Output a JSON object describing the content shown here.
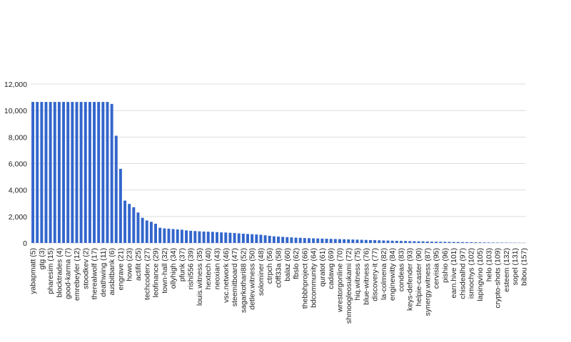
{
  "chart_data": {
    "type": "bar",
    "color": "#3366cc",
    "grid": true,
    "categories": [
      "yabapmatt (5)",
      null,
      "gtg (3)",
      null,
      "pharesim (15)",
      null,
      "blocktrades (4)",
      null,
      "good-karma (7)",
      null,
      "emrebeyler (12)",
      null,
      "stoodkev (2)",
      null,
      "therealwolf (17)",
      null,
      "deathwing (11)",
      null,
      "ausbitbank (6)",
      null,
      "engrave (21)",
      null,
      "howo (23)",
      null,
      "actifit (25)",
      null,
      "techcoderx (27)",
      null,
      "leofinance (29)",
      null,
      "town-hall (32)",
      null,
      "ollyhigh (34)",
      null,
      "pfunk (37)",
      null,
      "rishi556 (39)",
      null,
      "louis.witness (35)",
      null,
      "hextech (40)",
      null,
      "neoxian (43)",
      null,
      "vsc.network (46)",
      null,
      "steemitboard (47)",
      null,
      "sagarkothari88 (52)",
      null,
      "detlev.witness (50)",
      null,
      "solominer (48)",
      null,
      "ctrpch (56)",
      null,
      "c0ff33a (58)",
      null,
      "balaz (60)",
      null,
      "fbslo (62)",
      null,
      "thebbhproject (66)",
      null,
      "bdcommunity (64)",
      null,
      "quratot (61)",
      null,
      "cadawg (69)",
      null,
      "wrestorgonline (70)",
      null,
      "shmoogleosukami (72)",
      null,
      "hiq.witness (75)",
      null,
      "blue-witness (76)",
      null,
      "discovery-it (77)",
      null,
      "la-colmena (82)",
      null,
      "enginewitty (84)",
      null,
      "condeas (83)",
      null,
      "keys-defender (93)",
      null,
      "helpie-caster (90)",
      null,
      "synergy.witness (87)",
      null,
      "cervisia (95)",
      null,
      "pishio (96)",
      null,
      "earn.hive (101)",
      null,
      "chisdealhd (97)",
      null,
      "ismochys (102)",
      null,
      "lapingvino (105)",
      null,
      "helo (103)",
      null,
      "crypto-shots (109)",
      null,
      "esteem (132)",
      null,
      "sopel (131)",
      null,
      "bibou (157)"
    ],
    "values": [
      10650,
      10650,
      10650,
      10650,
      10650,
      10650,
      10650,
      10650,
      10650,
      10650,
      10650,
      10650,
      10650,
      10650,
      10650,
      10650,
      10650,
      10650,
      10500,
      8100,
      5600,
      3200,
      2950,
      2700,
      2300,
      1900,
      1700,
      1600,
      1450,
      1150,
      1100,
      1080,
      1050,
      1020,
      1000,
      950,
      920,
      900,
      880,
      860,
      850,
      840,
      820,
      800,
      790,
      770,
      750,
      720,
      700,
      680,
      660,
      640,
      620,
      580,
      540,
      500,
      480,
      460,
      440,
      420,
      400,
      390,
      370,
      360,
      350,
      340,
      330,
      320,
      310,
      300,
      290,
      280,
      270,
      260,
      250,
      240,
      230,
      220,
      210,
      200,
      190,
      180,
      170,
      160,
      155,
      150,
      140,
      130,
      125,
      120,
      110,
      100,
      95,
      90,
      85,
      80,
      75,
      70,
      65,
      60,
      55,
      50,
      45,
      40,
      35,
      30,
      28,
      25,
      22,
      20,
      18,
      15,
      12
    ],
    "ylim": [
      0,
      12000
    ],
    "yticks": [
      0,
      {
        "value": 2000,
        "label": "2,000"
      },
      {
        "value": 4000,
        "label": "4,000"
      },
      {
        "value": 6000,
        "label": "6,000"
      },
      {
        "value": 8000,
        "label": "8,000"
      },
      {
        "value": 10000,
        "label": "10,000"
      },
      {
        "value": 12000,
        "label": "12,000"
      }
    ]
  }
}
